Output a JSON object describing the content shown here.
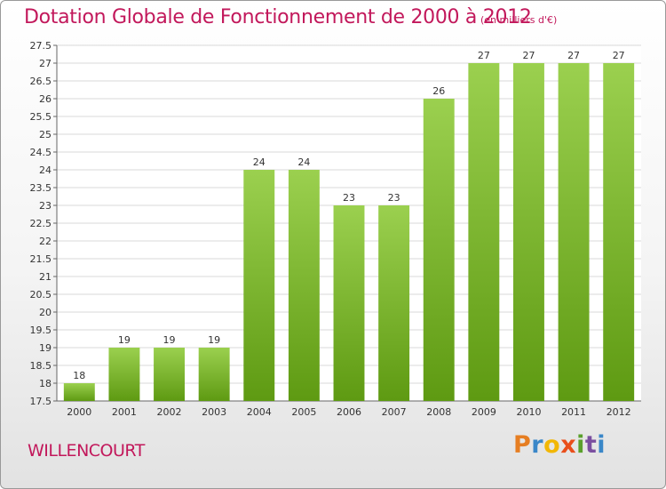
{
  "header": {
    "title": "Dotation Globale de Fonctionnement de 2000 à 2012",
    "unit": "(en milliers d'€)"
  },
  "footer": {
    "commune": "WILLENCOURT",
    "logo": "Proxiti"
  },
  "colors": {
    "title": "#c2185b",
    "bar_light": "#9bd04f",
    "bar_dark": "#5e9a12",
    "grid": "#d8d8d8"
  },
  "chart_data": {
    "type": "bar",
    "title": "Dotation Globale de Fonctionnement de 2000 à 2012",
    "subtitle": "(en milliers d'€)",
    "categories": [
      "2000",
      "2001",
      "2002",
      "2003",
      "2004",
      "2005",
      "2006",
      "2007",
      "2008",
      "2009",
      "2010",
      "2011",
      "2012"
    ],
    "values": [
      18,
      19,
      19,
      19,
      24,
      24,
      23,
      23,
      26,
      27,
      27,
      27,
      27
    ],
    "ylim": [
      17.5,
      27.5
    ],
    "yticks": [
      "17.5",
      "18",
      "18.5",
      "19",
      "19.5",
      "20",
      "20.5",
      "21",
      "21.5",
      "22",
      "22.5",
      "23",
      "23.5",
      "24",
      "24.5",
      "25",
      "25.5",
      "26",
      "26.5",
      "27",
      "27.5"
    ],
    "grid": true,
    "legend": "none"
  }
}
